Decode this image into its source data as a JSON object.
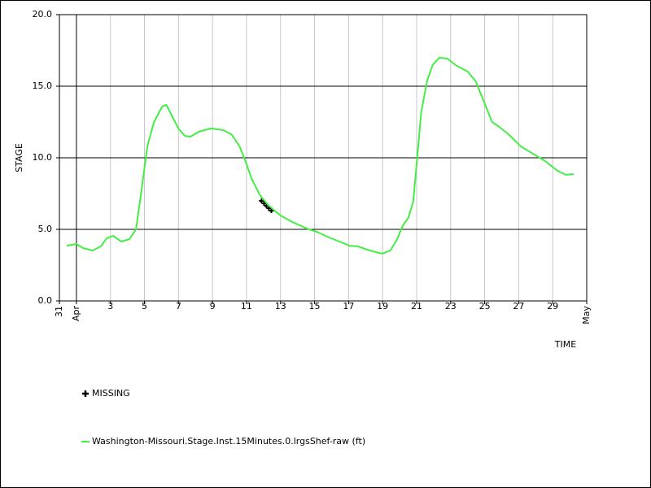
{
  "chart_data": {
    "type": "line",
    "y_label": "STAGE",
    "x_label": "TIME",
    "xlim": [
      0,
      31
    ],
    "xticks": [
      {
        "value": 0,
        "label": "31"
      },
      {
        "value": 1,
        "label": "Apr"
      },
      3,
      5,
      7,
      9,
      11,
      13,
      15,
      17,
      19,
      21,
      23,
      25,
      27,
      29,
      {
        "value": 31,
        "label": "May"
      }
    ],
    "ylim": [
      0,
      20
    ],
    "yticks": [
      {
        "value": 0,
        "label": "0.0"
      },
      {
        "value": 5,
        "label": "5.0"
      },
      {
        "value": 10,
        "label": "10.0"
      },
      {
        "value": 15,
        "label": "15.0"
      },
      {
        "value": 20,
        "label": "20.0"
      }
    ],
    "grid": true,
    "series": [
      {
        "name": "MISSING",
        "color": "#000000",
        "marker": "plus",
        "x": [
          11.88,
          12.03,
          12.17,
          12.31,
          12.46
        ],
        "values": [
          6.99,
          6.82,
          6.65,
          6.48,
          6.31
        ]
      },
      {
        "name": "Washington-Missouri.Stage.Inst.15Minutes.0.lrgsShef-raw (ft)",
        "color": "#44ee44",
        "marker": "line",
        "x": [
          0.43,
          1.0,
          1.39,
          1.96,
          2.44,
          2.78,
          3.16,
          3.64,
          4.12,
          4.5,
          4.79,
          5.17,
          5.56,
          6.04,
          6.28,
          6.61,
          6.99,
          7.38,
          7.71,
          8.19,
          8.91,
          9.63,
          10.11,
          10.59,
          10.97,
          11.31,
          11.79,
          12.27,
          12.99,
          13.7,
          14.66,
          15.14,
          15.86,
          16.58,
          17.06,
          17.54,
          18.25,
          18.97,
          19.45,
          19.84,
          20.17,
          20.51,
          20.8,
          21.03,
          21.27,
          21.61,
          21.94,
          22.33,
          22.81,
          23.29,
          24.0,
          24.48,
          24.96,
          25.44,
          25.78,
          26.4,
          27.12,
          28.08,
          28.56,
          29.28,
          29.76,
          30.24
        ],
        "values": [
          3.86,
          3.98,
          3.69,
          3.52,
          3.81,
          4.38,
          4.55,
          4.15,
          4.32,
          5.0,
          7.39,
          10.8,
          12.5,
          13.58,
          13.7,
          12.95,
          12.05,
          11.53,
          11.48,
          11.82,
          12.05,
          11.93,
          11.65,
          10.8,
          9.66,
          8.52,
          7.39,
          6.7,
          5.97,
          5.51,
          5.0,
          4.83,
          4.43,
          4.09,
          3.86,
          3.81,
          3.52,
          3.3,
          3.52,
          4.26,
          5.23,
          5.8,
          6.93,
          9.94,
          13.18,
          15.34,
          16.48,
          16.99,
          16.93,
          16.48,
          16.02,
          15.34,
          13.92,
          12.5,
          12.22,
          11.65,
          10.8,
          10.11,
          9.77,
          9.09,
          8.81,
          8.86
        ]
      }
    ]
  }
}
